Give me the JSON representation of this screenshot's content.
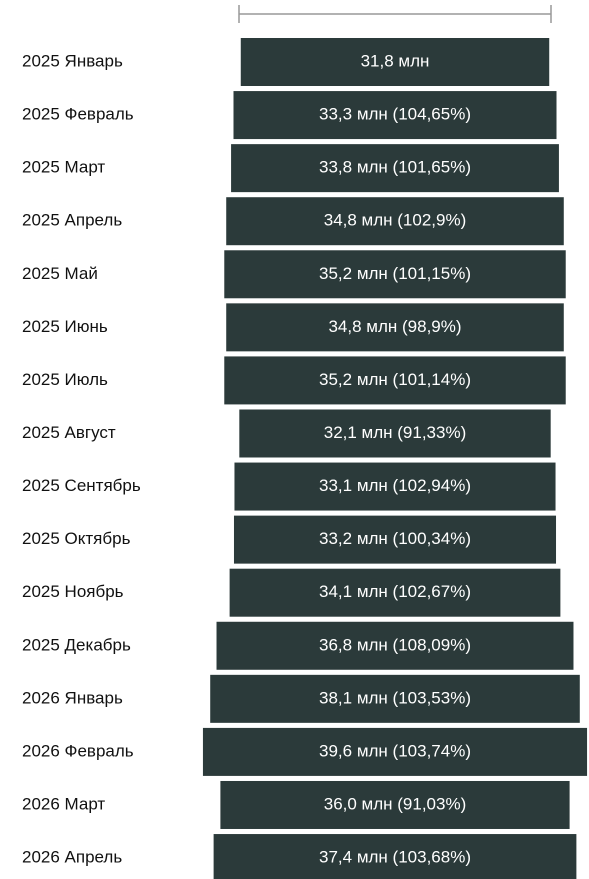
{
  "chart_data": {
    "type": "funnel",
    "categories": [
      "2025 Январь",
      "2025 Февраль",
      "2025 Март",
      "2025 Апрель",
      "2025 Май",
      "2025 Июнь",
      "2025 Июль",
      "2025 Август",
      "2025 Сентябрь",
      "2025 Октябрь",
      "2025 Ноябрь",
      "2025 Декабрь",
      "2026 Январь",
      "2026 Февраль",
      "2026 Март",
      "2026 Апрель"
    ],
    "values": [
      31.8,
      33.3,
      33.8,
      34.8,
      35.2,
      34.8,
      35.2,
      32.1,
      33.1,
      33.2,
      34.1,
      36.8,
      38.1,
      39.6,
      36.0,
      37.4
    ],
    "value_labels": [
      "31,8 млн",
      "33,3 млн (104,65%)",
      "33,8 млн (101,65%)",
      "34,8 млн (102,9%)",
      "35,2 млн (101,15%)",
      "34,8 млн (98,9%)",
      "35,2 млн (101,14%)",
      "32,1 млн (91,33%)",
      "33,1 млн (102,94%)",
      "33,2 млн (100,34%)",
      "34,1 млн (102,67%)",
      "36,8 млн (108,09%)",
      "38,1 млн (103,53%)",
      "39,6 млн (103,74%)",
      "36,0 млн (91,03%)",
      "37,4 млн (103,68%)"
    ],
    "color": "#2b3a3a"
  }
}
